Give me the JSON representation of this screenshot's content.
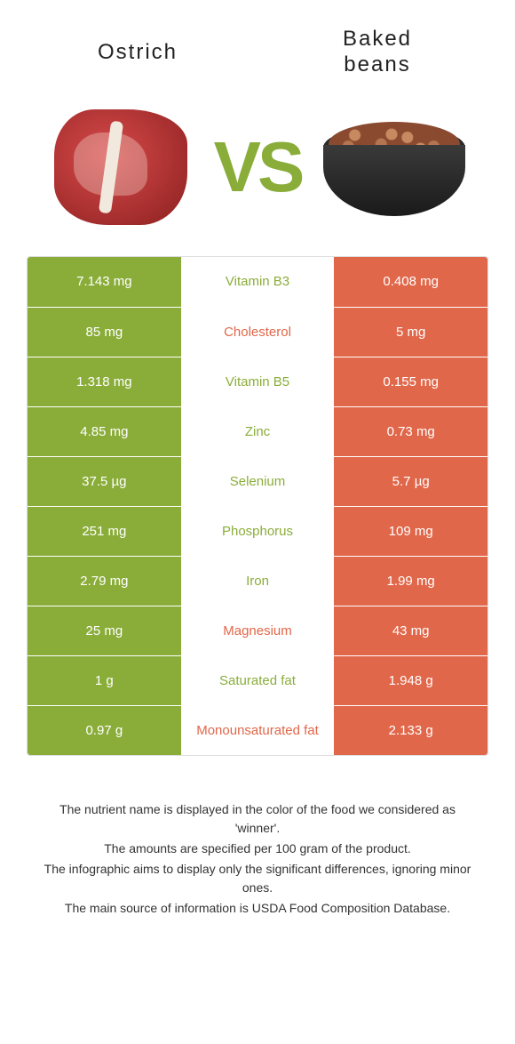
{
  "titles": {
    "left": "Ostrich",
    "right_line1": "Baked",
    "right_line2": "beans"
  },
  "vs": "VS",
  "colors": {
    "green": "#8aad3a",
    "orange": "#e1674a",
    "bg": "#ffffff",
    "text": "#333333"
  },
  "rows": [
    {
      "left": "7.143 mg",
      "label": "Vitamin B3",
      "right": "0.408 mg",
      "left_bg": "g",
      "right_bg": "o",
      "label_color": "g-text"
    },
    {
      "left": "85 mg",
      "label": "Cholesterol",
      "right": "5 mg",
      "left_bg": "g",
      "right_bg": "o",
      "label_color": "o-text"
    },
    {
      "left": "1.318 mg",
      "label": "Vitamin B5",
      "right": "0.155 mg",
      "left_bg": "g",
      "right_bg": "o",
      "label_color": "g-text"
    },
    {
      "left": "4.85 mg",
      "label": "Zinc",
      "right": "0.73 mg",
      "left_bg": "g",
      "right_bg": "o",
      "label_color": "g-text"
    },
    {
      "left": "37.5 µg",
      "label": "Selenium",
      "right": "5.7 µg",
      "left_bg": "g",
      "right_bg": "o",
      "label_color": "g-text"
    },
    {
      "left": "251 mg",
      "label": "Phosphorus",
      "right": "109 mg",
      "left_bg": "g",
      "right_bg": "o",
      "label_color": "g-text"
    },
    {
      "left": "2.79 mg",
      "label": "Iron",
      "right": "1.99 mg",
      "left_bg": "g",
      "right_bg": "o",
      "label_color": "g-text"
    },
    {
      "left": "25 mg",
      "label": "Magnesium",
      "right": "43 mg",
      "left_bg": "g",
      "right_bg": "o",
      "label_color": "o-text"
    },
    {
      "left": "1 g",
      "label": "Saturated fat",
      "right": "1.948 g",
      "left_bg": "g",
      "right_bg": "o",
      "label_color": "g-text"
    },
    {
      "left": "0.97 g",
      "label": "Monounsaturated fat",
      "right": "2.133 g",
      "left_bg": "g",
      "right_bg": "o",
      "label_color": "o-text"
    }
  ],
  "footer": [
    "The nutrient name is displayed in the color of the food we considered as 'winner'.",
    "The amounts are specified per 100 gram of the product.",
    "The infographic aims to display only the significant differences, ignoring minor ones.",
    "The main source of information is USDA Food Composition Database."
  ]
}
